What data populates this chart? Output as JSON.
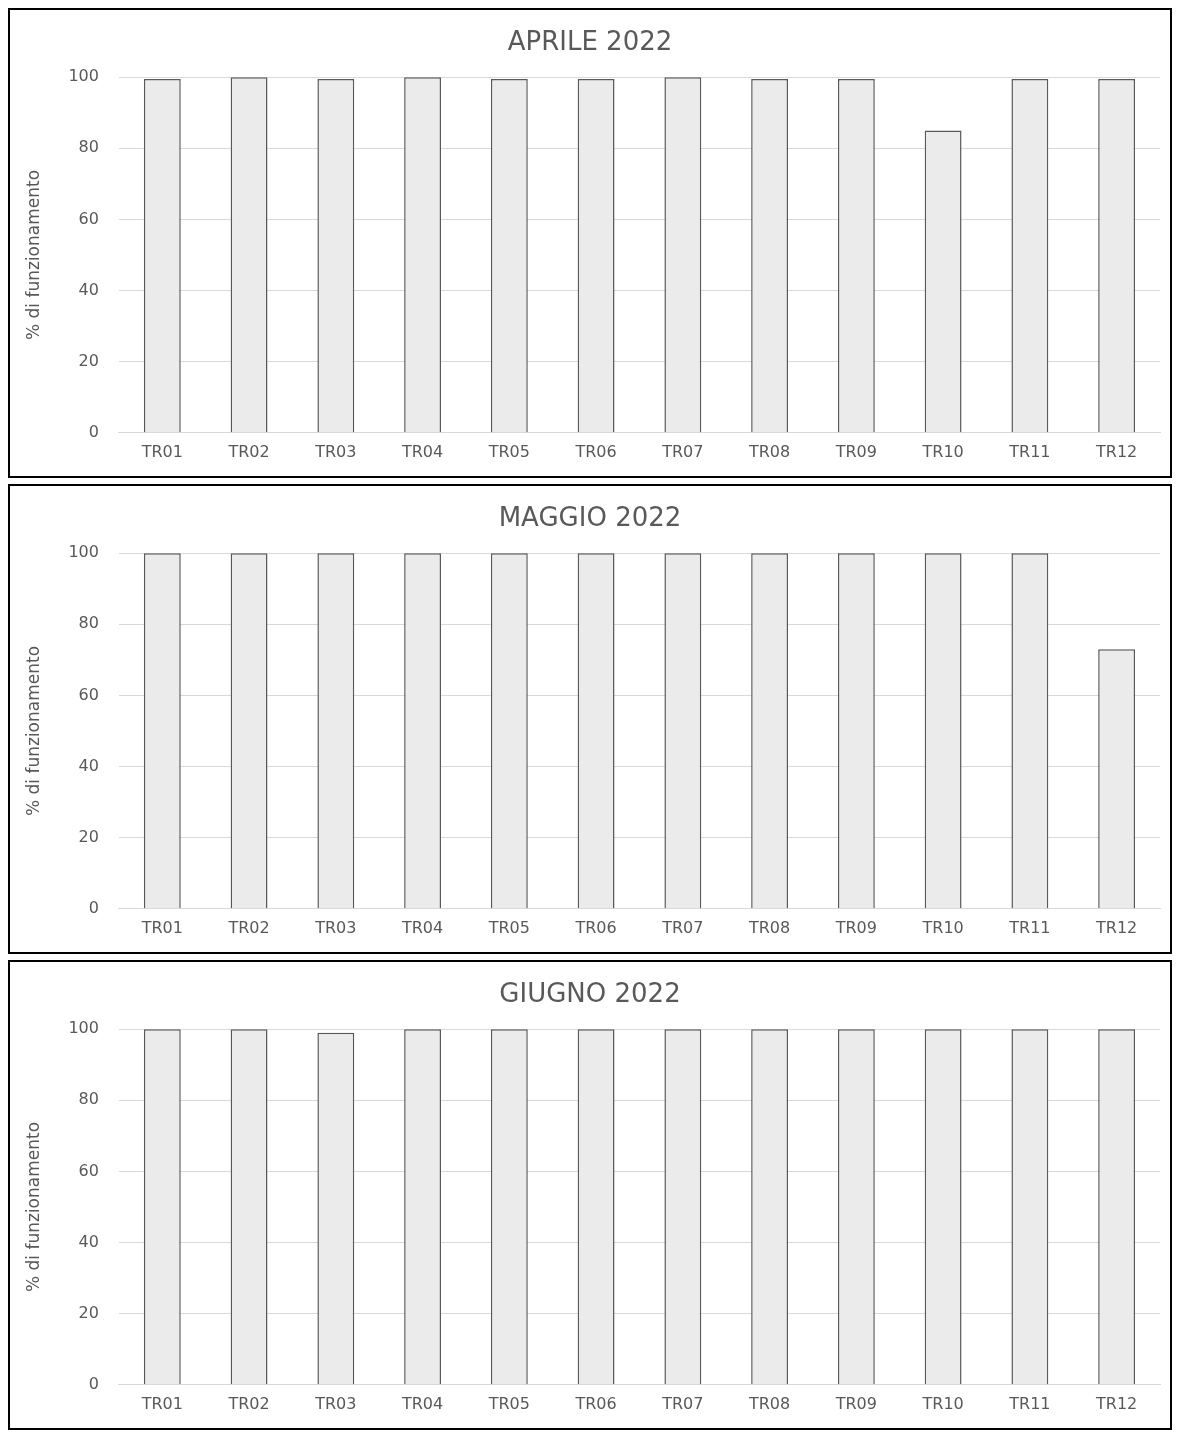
{
  "chart_data": [
    {
      "type": "bar",
      "title": "APRILE 2022",
      "ylabel": "% di funzionamento",
      "categories": [
        "TR01",
        "TR02",
        "TR03",
        "TR04",
        "TR05",
        "TR06",
        "TR07",
        "TR08",
        "TR09",
        "TR10",
        "TR11",
        "TR12"
      ],
      "values": [
        99.5,
        100,
        99.5,
        100,
        99.5,
        99.5,
        100,
        99.5,
        99.5,
        85,
        99.5,
        99.5
      ],
      "color": "#ebebeb",
      "ylim": [
        0,
        100
      ],
      "yticks": [
        0,
        20,
        40,
        60,
        80,
        100
      ],
      "grid": "y"
    },
    {
      "type": "bar",
      "title": "MAGGIO 2022",
      "ylabel": "% di funzionamento",
      "categories": [
        "TR01",
        "TR02",
        "TR03",
        "TR04",
        "TR05",
        "TR06",
        "TR07",
        "TR08",
        "TR09",
        "TR10",
        "TR11",
        "TR12"
      ],
      "values": [
        100,
        100,
        100,
        100,
        100,
        100,
        100,
        100,
        100,
        100,
        100,
        73
      ],
      "color": "#ebebeb",
      "ylim": [
        0,
        100
      ],
      "yticks": [
        0,
        20,
        40,
        60,
        80,
        100
      ],
      "grid": "y"
    },
    {
      "type": "bar",
      "title": "GIUGNO 2022",
      "ylabel": "% di funzionamento",
      "categories": [
        "TR01",
        "TR02",
        "TR03",
        "TR04",
        "TR05",
        "TR06",
        "TR07",
        "TR08",
        "TR09",
        "TR10",
        "TR11",
        "TR12"
      ],
      "values": [
        100,
        100,
        99,
        100,
        100,
        100,
        100,
        100,
        100,
        100,
        100,
        100
      ],
      "color": "#ebebeb",
      "ylim": [
        0,
        100
      ],
      "yticks": [
        0,
        20,
        40,
        60,
        80,
        100
      ],
      "grid": "y"
    }
  ]
}
